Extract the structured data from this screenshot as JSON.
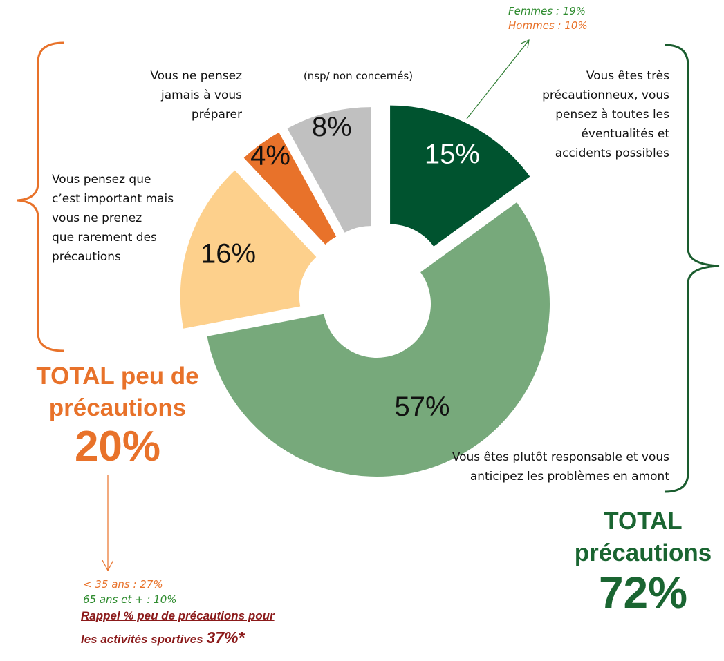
{
  "chart_data": {
    "type": "donut",
    "categories": [
      "Vous êtes très\nprécautionneux, vous\npensez à toutes les\néventualités et\naccidents possibles",
      "Vous êtes plutôt responsable et vous\nanticipez les problèmes en amont",
      "Vous pensez que\nc’est important mais\nvous ne prenez\nque rarement des\nprécautions",
      "Vous ne pensez\njamais à vous\npréparer",
      "(nsp/ non concernés)"
    ],
    "values": [
      15,
      57,
      16,
      4,
      8
    ],
    "value_labels": [
      "15%",
      "57%",
      "16%",
      "4%",
      "8%"
    ],
    "colors": [
      "#00532f",
      "#77a97b",
      "#fdd08c",
      "#e8722a",
      "#c0c0c0"
    ],
    "annotations": {
      "femmes": "Femmes : 19%",
      "hommes": "Hommes : 10%",
      "total_low_label": "TOTAL peu de\nprécautions",
      "total_low_value": "20%",
      "total_high_label": "TOTAL\nprécautions",
      "total_high_value": "72%",
      "young": "< 35 ans : 27%",
      "old": "65 ans et + : 10%",
      "reminder_line1": "Rappel % peu de précautions pour",
      "reminder_line2": "les activités sportives ",
      "reminder_value": "37%*"
    }
  }
}
